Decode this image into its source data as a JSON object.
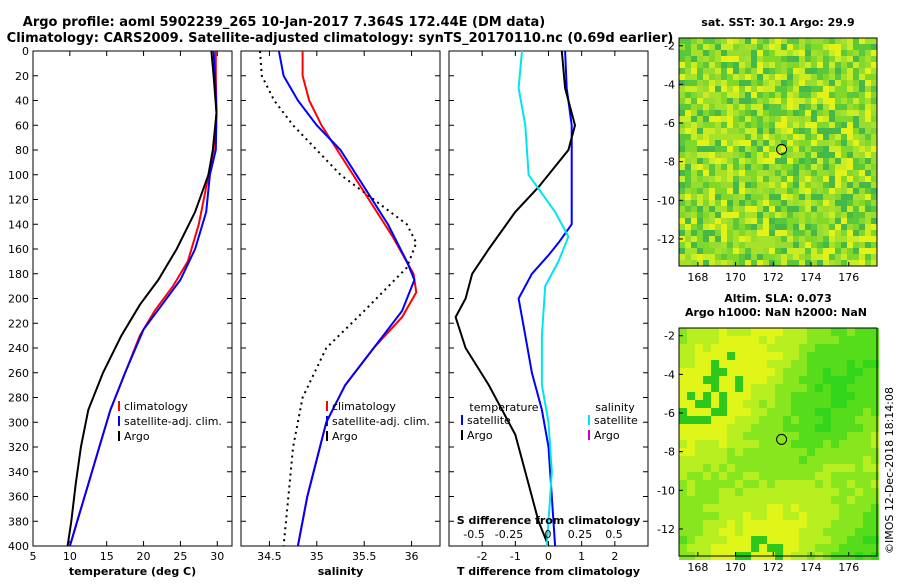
{
  "header": {
    "line1": "Argo profile: aoml 5902239_265 10-Jan-2017 7.364S 172.44E (DM data)",
    "line2": "Climatology: CARS2009. Satellite-adjusted climatology: synTS_20170110.nc (0.69d earlier)"
  },
  "colors": {
    "climatology": "#ff0000",
    "satellite": "#0000ff",
    "argo": "#000000",
    "sal_sat": "#00e5ee",
    "sal_argo": "#cc00cc",
    "dotted": "#000000"
  },
  "chart_data": [
    {
      "type": "line",
      "id": "temperature",
      "xlabel": "temperature (deg C)",
      "ylabel": "depth",
      "xlim": [
        5,
        32
      ],
      "ylim": [
        0,
        400
      ],
      "x_ticks": [
        "5",
        "10",
        "15",
        "20",
        "25",
        "30"
      ],
      "x_tick_values": [
        5,
        10,
        15,
        20,
        25,
        30
      ],
      "y_ticks": [
        "0",
        "20",
        "40",
        "60",
        "80",
        "100",
        "120",
        "140",
        "160",
        "180",
        "200",
        "220",
        "240",
        "260",
        "280",
        "300",
        "320",
        "340",
        "360",
        "380",
        "400"
      ],
      "y_tick_values": [
        0,
        20,
        40,
        60,
        80,
        100,
        120,
        140,
        160,
        180,
        200,
        220,
        240,
        260,
        280,
        300,
        320,
        340,
        360,
        380,
        400
      ],
      "legend": [
        "climatology",
        "satellite-adj. clim.",
        "Argo"
      ],
      "series": [
        {
          "name": "climatology",
          "color": "#ff0000",
          "points": [
            [
              29.8,
              0
            ],
            [
              29.8,
              20
            ],
            [
              29.9,
              50
            ],
            [
              29.5,
              80
            ],
            [
              28.5,
              110
            ],
            [
              27.5,
              140
            ],
            [
              26.0,
              170
            ],
            [
              24.0,
              190
            ],
            [
              21.5,
              210
            ],
            [
              19.5,
              230
            ],
            [
              17.5,
              260
            ],
            [
              15.5,
              290
            ],
            [
              14.0,
              320
            ],
            [
              12.5,
              350
            ],
            [
              11.0,
              380
            ],
            [
              10.0,
              400
            ]
          ]
        },
        {
          "name": "satellite-adj. clim.",
          "color": "#0000ff",
          "points": [
            [
              29.5,
              0
            ],
            [
              29.7,
              20
            ],
            [
              29.9,
              50
            ],
            [
              29.8,
              80
            ],
            [
              29.0,
              100
            ],
            [
              28.5,
              130
            ],
            [
              27.0,
              160
            ],
            [
              25.0,
              185
            ],
            [
              22.5,
              205
            ],
            [
              20.0,
              225
            ],
            [
              17.5,
              260
            ],
            [
              15.5,
              290
            ],
            [
              14.0,
              320
            ],
            [
              12.5,
              350
            ],
            [
              11.0,
              380
            ],
            [
              10.0,
              400
            ]
          ]
        },
        {
          "name": "Argo",
          "color": "#000000",
          "points": [
            [
              29.2,
              0
            ],
            [
              29.5,
              20
            ],
            [
              29.9,
              50
            ],
            [
              29.4,
              80
            ],
            [
              28.8,
              100
            ],
            [
              27.0,
              130
            ],
            [
              24.5,
              160
            ],
            [
              22.0,
              185
            ],
            [
              19.5,
              205
            ],
            [
              17.0,
              230
            ],
            [
              14.5,
              260
            ],
            [
              12.5,
              290
            ],
            [
              11.5,
              320
            ],
            [
              10.8,
              350
            ],
            [
              10.2,
              380
            ],
            [
              9.7,
              400
            ]
          ]
        }
      ]
    },
    {
      "type": "line",
      "id": "salinity",
      "xlabel": "salinity",
      "ylabel": "depth",
      "xlim": [
        34.2,
        36.3
      ],
      "ylim": [
        0,
        400
      ],
      "x_ticks": [
        "34.5",
        "35",
        "35.5",
        "36"
      ],
      "x_tick_values": [
        34.5,
        35,
        35.5,
        36
      ],
      "legend": [
        "climatology",
        "satellite-adj. clim.",
        "Argo"
      ],
      "series": [
        {
          "name": "climatology",
          "color": "#ff0000",
          "points": [
            [
              34.85,
              0
            ],
            [
              34.85,
              20
            ],
            [
              34.92,
              40
            ],
            [
              35.05,
              60
            ],
            [
              35.3,
              90
            ],
            [
              35.55,
              120
            ],
            [
              35.8,
              150
            ],
            [
              36.02,
              180
            ],
            [
              36.05,
              195
            ],
            [
              35.9,
              215
            ],
            [
              35.6,
              240
            ],
            [
              35.3,
              270
            ],
            [
              35.1,
              300
            ],
            [
              35.0,
              330
            ],
            [
              34.9,
              360
            ],
            [
              34.8,
              400
            ]
          ]
        },
        {
          "name": "satellite-adj. clim.",
          "color": "#0000ff",
          "points": [
            [
              34.6,
              0
            ],
            [
              34.65,
              20
            ],
            [
              34.8,
              40
            ],
            [
              35.0,
              60
            ],
            [
              35.25,
              80
            ],
            [
              35.5,
              110
            ],
            [
              35.75,
              140
            ],
            [
              35.95,
              170
            ],
            [
              36.03,
              185
            ],
            [
              35.9,
              210
            ],
            [
              35.6,
              240
            ],
            [
              35.3,
              270
            ],
            [
              35.1,
              300
            ],
            [
              35.0,
              330
            ],
            [
              34.9,
              360
            ],
            [
              34.8,
              400
            ]
          ]
        },
        {
          "name": "Argo",
          "color": "#000000",
          "dotted": true,
          "points": [
            [
              34.4,
              0
            ],
            [
              34.42,
              20
            ],
            [
              34.55,
              40
            ],
            [
              34.75,
              60
            ],
            [
              35.0,
              80
            ],
            [
              35.25,
              100
            ],
            [
              35.6,
              120
            ],
            [
              35.95,
              140
            ],
            [
              36.05,
              155
            ],
            [
              35.95,
              175
            ],
            [
              35.5,
              210
            ],
            [
              35.1,
              240
            ],
            [
              34.85,
              280
            ],
            [
              34.75,
              320
            ],
            [
              34.7,
              360
            ],
            [
              34.65,
              400
            ]
          ]
        }
      ]
    },
    {
      "type": "line",
      "id": "difference",
      "xlabel": "T difference from climatology",
      "top_xlabel": "S difference from climatology",
      "xlim": [
        -3,
        3
      ],
      "ylim": [
        0,
        400
      ],
      "x_ticks": [
        "-2",
        "-1",
        "0",
        "1",
        "2"
      ],
      "x_tick_values": [
        -2,
        -1,
        0,
        1,
        2
      ],
      "top_ticks": [
        "-0.5",
        "-0.25",
        "0",
        "0.25",
        "0.5"
      ],
      "legend_temperature_title": "temperature",
      "legend_salinity_title": "salinity",
      "legend_temperature": [
        "satellite",
        "Argo"
      ],
      "legend_salinity": [
        "satellite",
        "Argo"
      ],
      "series": [
        {
          "name": "T satellite",
          "color": "#0000ff",
          "points": [
            [
              0.5,
              0
            ],
            [
              0.55,
              30
            ],
            [
              0.7,
              60
            ],
            [
              0.7,
              100
            ],
            [
              0.7,
              140
            ],
            [
              0.3,
              155
            ],
            [
              0,
              165
            ],
            [
              -0.5,
              180
            ],
            [
              -0.9,
              200
            ],
            [
              -0.7,
              230
            ],
            [
              -0.5,
              260
            ],
            [
              -0.2,
              290
            ],
            [
              0.0,
              320
            ],
            [
              0.1,
              360
            ],
            [
              0.2,
              400
            ]
          ]
        },
        {
          "name": "T Argo",
          "color": "#000000",
          "points": [
            [
              0.4,
              0
            ],
            [
              0.5,
              30
            ],
            [
              0.8,
              60
            ],
            [
              0.6,
              80
            ],
            [
              -0.3,
              110
            ],
            [
              -1.0,
              130
            ],
            [
              -1.8,
              160
            ],
            [
              -2.3,
              180
            ],
            [
              -2.5,
              200
            ],
            [
              -2.8,
              215
            ],
            [
              -2.5,
              240
            ],
            [
              -1.8,
              270
            ],
            [
              -1.0,
              310
            ],
            [
              -0.6,
              350
            ],
            [
              -0.3,
              380
            ],
            [
              0.0,
              400
            ]
          ]
        },
        {
          "name": "S satellite",
          "color": "#00e5ee",
          "points": [
            [
              -0.8,
              0
            ],
            [
              -0.9,
              30
            ],
            [
              -0.7,
              60
            ],
            [
              -0.6,
              100
            ],
            [
              0.2,
              130
            ],
            [
              0.6,
              150
            ],
            [
              0.3,
              170
            ],
            [
              -0.1,
              190
            ],
            [
              -0.2,
              230
            ],
            [
              -0.2,
              270
            ],
            [
              0.0,
              300
            ],
            [
              0.1,
              340
            ],
            [
              0.0,
              380
            ],
            [
              -0.05,
              400
            ]
          ]
        }
      ]
    },
    {
      "type": "heatmap",
      "id": "sst_map",
      "title": "sat. SST: 30.1  Argo: 29.9",
      "x_ticks": [
        "168",
        "170",
        "172",
        "174",
        "176"
      ],
      "x_tick_values": [
        168,
        170,
        172,
        174,
        176
      ],
      "y_ticks": [
        "-2",
        "-4",
        "-6",
        "-8",
        "-10",
        "-12"
      ],
      "y_tick_values": [
        -2,
        -4,
        -6,
        -8,
        -10,
        -12
      ],
      "xlim": [
        167,
        177.5
      ],
      "ylim": [
        -13.4,
        -1.6
      ],
      "marker": [
        172.44,
        -7.364
      ]
    },
    {
      "type": "heatmap",
      "id": "sla_map",
      "title": "Altim. SLA: 0.073",
      "subtitle": "Argo h1000: NaN h2000: NaN",
      "x_ticks": [
        "168",
        "170",
        "172",
        "174",
        "176"
      ],
      "x_tick_values": [
        168,
        170,
        172,
        174,
        176
      ],
      "y_ticks": [
        "-2",
        "-4",
        "-6",
        "-8",
        "-10",
        "-12"
      ],
      "y_tick_values": [
        -2,
        -4,
        -6,
        -8,
        -10,
        -12
      ],
      "xlim": [
        167,
        177.5
      ],
      "ylim": [
        -13.4,
        -1.6
      ],
      "marker": [
        172.44,
        -7.364
      ]
    }
  ],
  "footer": {
    "stamp": "©IMOS 12-Dec-2018 18:14:08"
  }
}
